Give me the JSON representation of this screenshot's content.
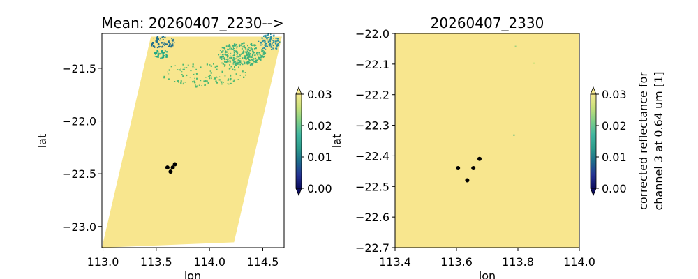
{
  "chart_data": [
    {
      "type": "heatmap",
      "title": "Mean: 20260407_2230-->",
      "xlabel": "lon",
      "ylabel": "lat",
      "xlim": [
        112.99,
        114.7
      ],
      "ylim": [
        -23.2,
        -21.17
      ],
      "xticks": [
        113.0,
        113.5,
        114.0,
        114.5
      ],
      "xtick_labels": [
        "113.0",
        "113.5",
        "114.0",
        "114.5"
      ],
      "yticks": [
        -21.5,
        -22.0,
        -22.5,
        -23.0
      ],
      "ytick_labels": [
        "−21.5",
        "−22.0",
        "−22.5",
        "−23.0"
      ],
      "swath_polygon": [
        [
          113.45,
          -21.2
        ],
        [
          114.68,
          -21.2
        ],
        [
          114.23,
          -23.15
        ],
        [
          112.99,
          -23.2
        ]
      ],
      "fill_color": "#f8e68e",
      "dense_regions": [
        {
          "lon": 113.55,
          "lat": -21.25,
          "rlon": 0.12,
          "rlat": 0.06,
          "n": 70,
          "color": "#1f6e8c"
        },
        {
          "lon": 113.54,
          "lat": -21.36,
          "rlon": 0.07,
          "rlat": 0.04,
          "n": 45,
          "color": "#23a983"
        },
        {
          "lon": 114.3,
          "lat": -21.36,
          "rlon": 0.22,
          "rlat": 0.11,
          "n": 320,
          "color": "#3fb27a"
        },
        {
          "lon": 114.55,
          "lat": -21.25,
          "rlon": 0.1,
          "rlat": 0.08,
          "n": 90,
          "color": "#2a8fa0"
        },
        {
          "lon": 113.95,
          "lat": -21.55,
          "rlon": 0.4,
          "rlat": 0.12,
          "n": 120,
          "color": "#4cb86f"
        }
      ],
      "points": [
        {
          "lon": 113.605,
          "lat": -22.44
        },
        {
          "lon": 113.655,
          "lat": -22.44
        },
        {
          "lon": 113.675,
          "lat": -22.41
        },
        {
          "lon": 113.635,
          "lat": -22.48
        }
      ],
      "colorbar": {
        "min": 0.0,
        "max": 0.03,
        "ticks": [
          0.0,
          0.01,
          0.02,
          0.03
        ],
        "tick_labels": [
          "0.00",
          "0.01",
          "0.02",
          "0.03"
        ],
        "label": "",
        "extend": "both",
        "colormap": [
          "#0c0c5e",
          "#253494",
          "#1d6b8b",
          "#2c9c8c",
          "#41b6a0",
          "#7fcf87",
          "#c7e07a",
          "#f6e990"
        ]
      }
    },
    {
      "type": "heatmap",
      "title": "20260407_2330",
      "xlabel": "lon",
      "ylabel": "lat",
      "xlim": [
        113.4,
        114.0
      ],
      "ylim": [
        -22.7,
        -22.0
      ],
      "xticks": [
        113.4,
        113.6,
        113.8,
        114.0
      ],
      "xtick_labels": [
        "113.4",
        "113.6",
        "113.8",
        "114.0"
      ],
      "yticks": [
        -22.0,
        -22.1,
        -22.2,
        -22.3,
        -22.4,
        -22.5,
        -22.6,
        -22.7
      ],
      "ytick_labels": [
        "−22.0",
        "−22.1",
        "−22.2",
        "−22.3",
        "−22.4",
        "−22.5",
        "−22.6",
        "−22.7"
      ],
      "fill_color": "#f8e68e",
      "specks": [
        {
          "lon": 113.785,
          "lat": -22.33,
          "color": "#3fb27a"
        },
        {
          "lon": 113.79,
          "lat": -22.04,
          "color": "#9fd27c"
        },
        {
          "lon": 113.85,
          "lat": -22.095,
          "color": "#c7e07a"
        }
      ],
      "points": [
        {
          "lon": 113.605,
          "lat": -22.44
        },
        {
          "lon": 113.655,
          "lat": -22.44
        },
        {
          "lon": 113.675,
          "lat": -22.41
        },
        {
          "lon": 113.635,
          "lat": -22.48
        }
      ],
      "colorbar": {
        "min": 0.0,
        "max": 0.03,
        "ticks": [
          0.0,
          0.01,
          0.02,
          0.03
        ],
        "tick_labels": [
          "0.00",
          "0.01",
          "0.02",
          "0.03"
        ],
        "label": [
          "corrected reflectance for",
          "channel 3 at 0.64 um [1]"
        ],
        "extend": "both",
        "colormap": [
          "#0c0c5e",
          "#253494",
          "#1d6b8b",
          "#2c9c8c",
          "#41b6a0",
          "#7fcf87",
          "#c7e07a",
          "#f6e990"
        ]
      }
    }
  ]
}
